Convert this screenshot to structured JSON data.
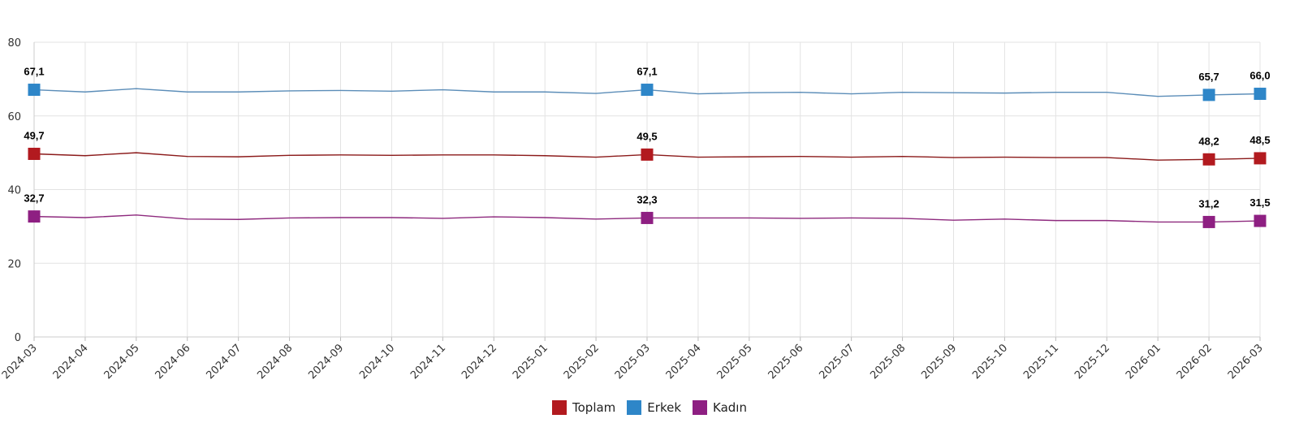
{
  "chart_data": {
    "type": "line",
    "x": [
      "2024-03",
      "2024-04",
      "2024-05",
      "2024-06",
      "2024-07",
      "2024-08",
      "2024-09",
      "2024-10",
      "2024-11",
      "2024-12",
      "2025-01",
      "2025-02",
      "2025-03",
      "2025-04",
      "2025-05",
      "2025-06",
      "2025-07",
      "2025-08",
      "2025-09",
      "2025-10",
      "2025-11",
      "2025-12",
      "2026-01",
      "2026-02",
      "2026-03"
    ],
    "ylim": [
      0,
      80
    ],
    "yticks": [
      "0",
      "20",
      "40",
      "60",
      "80"
    ],
    "grid": true,
    "legend_position": "bottom-center",
    "series": [
      {
        "name": "Toplam",
        "color": "#b21a1f",
        "line_color": "#8b1a1a",
        "values": [
          49.7,
          49.2,
          50.0,
          49.0,
          48.9,
          49.3,
          49.4,
          49.3,
          49.4,
          49.4,
          49.2,
          48.8,
          49.5,
          48.8,
          48.9,
          49.0,
          48.8,
          49.0,
          48.7,
          48.8,
          48.7,
          48.7,
          48.0,
          48.2,
          48.5
        ],
        "marker_labels": [
          {
            "x": "2024-03",
            "text": "49,7"
          },
          {
            "x": "2025-03",
            "text": "49,5"
          },
          {
            "x": "2026-02",
            "text": "48,2"
          },
          {
            "x": "2026-03",
            "text": "48,5"
          }
        ]
      },
      {
        "name": "Erkek",
        "color": "#2e86c8",
        "line_color": "#5b8db8",
        "values": [
          67.1,
          66.5,
          67.4,
          66.5,
          66.5,
          66.8,
          66.9,
          66.7,
          67.1,
          66.5,
          66.5,
          66.1,
          67.1,
          66.0,
          66.3,
          66.4,
          66.0,
          66.4,
          66.3,
          66.2,
          66.4,
          66.4,
          65.3,
          65.7,
          66.0
        ],
        "marker_labels": [
          {
            "x": "2024-03",
            "text": "67,1"
          },
          {
            "x": "2025-03",
            "text": "67,1"
          },
          {
            "x": "2026-02",
            "text": "65,7"
          },
          {
            "x": "2026-03",
            "text": "66,0"
          }
        ]
      },
      {
        "name": "Kadın",
        "color": "#8e1f82",
        "line_color": "#8e2a7e",
        "values": [
          32.7,
          32.4,
          33.1,
          32.0,
          31.9,
          32.3,
          32.4,
          32.4,
          32.2,
          32.6,
          32.4,
          32.0,
          32.3,
          32.3,
          32.3,
          32.2,
          32.3,
          32.2,
          31.7,
          32.0,
          31.6,
          31.6,
          31.2,
          31.2,
          31.5
        ],
        "marker_labels": [
          {
            "x": "2024-03",
            "text": "32,7"
          },
          {
            "x": "2025-03",
            "text": "32,3"
          },
          {
            "x": "2026-02",
            "text": "31,2"
          },
          {
            "x": "2026-03",
            "text": "31,5"
          }
        ]
      }
    ]
  },
  "legend": {
    "items": [
      {
        "label": "Toplam",
        "color": "#b21a1f"
      },
      {
        "label": "Erkek",
        "color": "#2e86c8"
      },
      {
        "label": "Kadın",
        "color": "#8e1f82"
      }
    ]
  }
}
